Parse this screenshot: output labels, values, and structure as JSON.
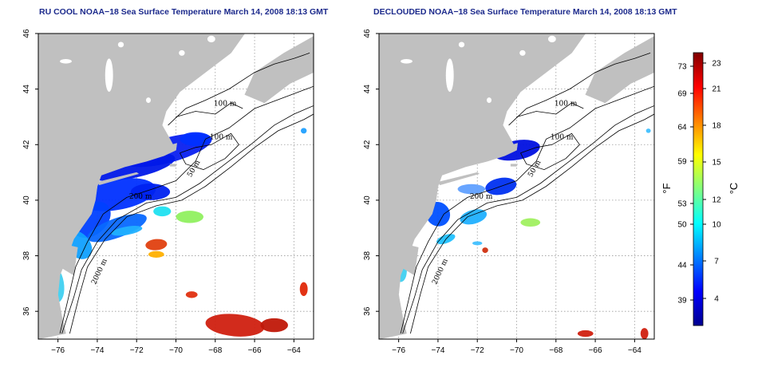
{
  "panels": [
    {
      "id": "left",
      "title": "RU COOL NOAA−18 Sea Surface Temperature March 14, 2008 18:13 GMT",
      "contour_labels": [
        "100 m",
        "100 m",
        "50 m",
        "200 m",
        "2000 m"
      ]
    },
    {
      "id": "right",
      "title": "DECLOUDED NOAA−18 Sea Surface Temperature March 14, 2008 18:13 GMT",
      "contour_labels": [
        "100 m",
        "100 m",
        "50 m",
        "200 m",
        "2000 m"
      ]
    }
  ],
  "axes": {
    "lon_ticks": [
      "−76",
      "−74",
      "−72",
      "−70",
      "−68",
      "−66",
      "−64"
    ],
    "lat_ticks": [
      "36",
      "38",
      "40",
      "42",
      "44",
      "46"
    ],
    "lon_range": [
      -77,
      -63
    ],
    "lat_range": [
      35,
      46
    ]
  },
  "colorbar": {
    "fahrenheit_labels": [
      "73",
      "69",
      "64",
      "59",
      "53",
      "50",
      "44",
      "39"
    ],
    "celsius_labels": [
      "23",
      "21",
      "18",
      "15",
      "12",
      "10",
      "7",
      "4"
    ],
    "unit_f": "°F",
    "unit_c": "°C",
    "colors": [
      "#00008f",
      "#0000ff",
      "#0080ff",
      "#00ffff",
      "#80ff80",
      "#ffff00",
      "#ff8000",
      "#ff0000",
      "#800000"
    ]
  },
  "colors": {
    "land": "#c0c0c0",
    "ocean": "#ffffff",
    "grid": "#9a9a9a"
  }
}
